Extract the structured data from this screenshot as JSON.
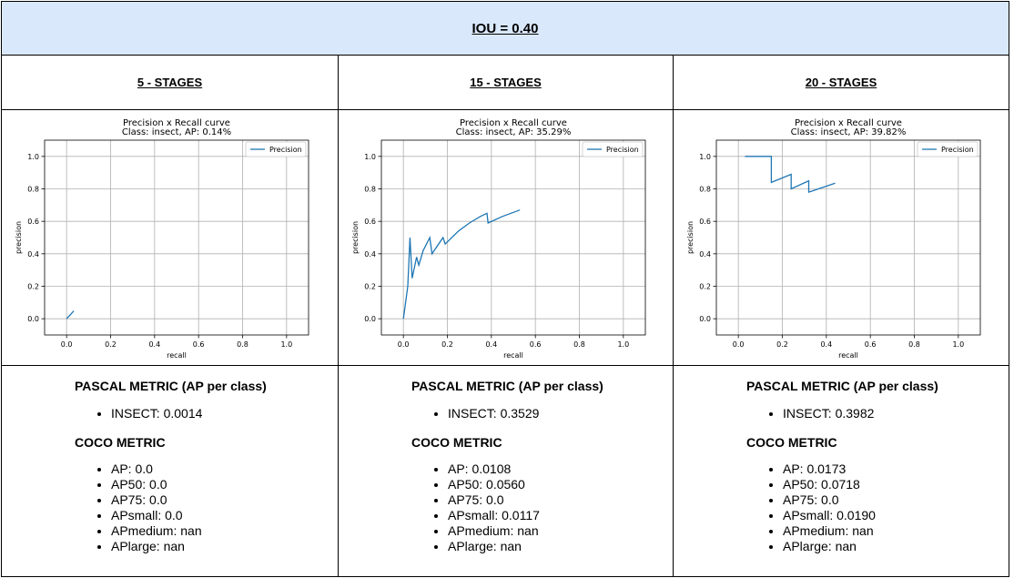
{
  "header": {
    "title": "IOU = 0.40"
  },
  "panels": [
    {
      "stage_label": "5 - STAGES",
      "pascal_title": "PASCAL METRIC (AP per class)",
      "pascal_items": [
        "INSECT: 0.0014"
      ],
      "coco_title": "COCO METRIC",
      "coco_items": [
        "AP: 0.0",
        "AP50: 0.0",
        "AP75: 0.0",
        "APsmall: 0.0",
        "APmedium: nan",
        "APlarge: nan"
      ]
    },
    {
      "stage_label": "15 - STAGES",
      "pascal_title": "PASCAL METRIC (AP per class)",
      "pascal_items": [
        "INSECT: 0.3529"
      ],
      "coco_title": "COCO METRIC",
      "coco_items": [
        "AP: 0.0108",
        "AP50: 0.0560",
        "AP75: 0.0",
        "APsmall: 0.0117",
        "APmedium: nan",
        "APlarge: nan"
      ]
    },
    {
      "stage_label": "20 - STAGES",
      "pascal_title": "PASCAL METRIC (AP per class)",
      "pascal_items": [
        "INSECT: 0.3982"
      ],
      "coco_title": "COCO METRIC",
      "coco_items": [
        "AP: 0.0173",
        "AP50: 0.0718",
        "AP75: 0.0",
        "APsmall: 0.0190",
        "APmedium: nan",
        "APlarge: nan"
      ]
    }
  ],
  "chart_data": [
    {
      "type": "line",
      "title": "Precision x Recall curve",
      "subtitle": "Class: insect, AP: 0.14%",
      "xlabel": "recall",
      "ylabel": "precision",
      "xlim": [
        -0.1,
        1.1
      ],
      "ylim": [
        -0.1,
        1.1
      ],
      "xticks": [
        "0.0",
        "0.2",
        "0.4",
        "0.6",
        "0.8",
        "1.0"
      ],
      "yticks": [
        "0.0",
        "0.2",
        "0.4",
        "0.6",
        "0.8",
        "1.0"
      ],
      "grid": true,
      "legend_position": "top-right",
      "series": [
        {
          "name": "Precision",
          "color": "#1f77b4",
          "x": [
            0.0,
            0.033
          ],
          "y": [
            0.0,
            0.048
          ]
        }
      ]
    },
    {
      "type": "line",
      "title": "Precision x Recall curve",
      "subtitle": "Class: insect, AP: 35.29%",
      "xlabel": "recall",
      "ylabel": "precision",
      "xlim": [
        -0.1,
        1.1
      ],
      "ylim": [
        -0.1,
        1.1
      ],
      "xticks": [
        "0.0",
        "0.2",
        "0.4",
        "0.6",
        "0.8",
        "1.0"
      ],
      "yticks": [
        "0.0",
        "0.2",
        "0.4",
        "0.6",
        "0.8",
        "1.0"
      ],
      "grid": true,
      "legend_position": "top-right",
      "series": [
        {
          "name": "Precision",
          "color": "#1f77b4",
          "x": [
            0.0,
            0.02,
            0.03,
            0.04,
            0.06,
            0.07,
            0.09,
            0.12,
            0.13,
            0.18,
            0.19,
            0.25,
            0.3,
            0.35,
            0.38,
            0.385,
            0.45,
            0.53
          ],
          "y": [
            0.0,
            0.2,
            0.5,
            0.25,
            0.38,
            0.33,
            0.42,
            0.5,
            0.4,
            0.5,
            0.46,
            0.54,
            0.59,
            0.63,
            0.65,
            0.59,
            0.63,
            0.67
          ]
        }
      ]
    },
    {
      "type": "line",
      "title": "Precision x Recall curve",
      "subtitle": "Class: insect, AP: 39.82%",
      "xlabel": "recall",
      "ylabel": "precision",
      "xlim": [
        -0.1,
        1.1
      ],
      "ylim": [
        -0.1,
        1.1
      ],
      "xticks": [
        "0.0",
        "0.2",
        "0.4",
        "0.6",
        "0.8",
        "1.0"
      ],
      "yticks": [
        "0.0",
        "0.2",
        "0.4",
        "0.6",
        "0.8",
        "1.0"
      ],
      "grid": true,
      "legend_position": "top-right",
      "series": [
        {
          "name": "Precision",
          "color": "#1f77b4",
          "x": [
            0.03,
            0.15,
            0.15,
            0.24,
            0.24,
            0.32,
            0.32,
            0.44
          ],
          "y": [
            1.0,
            1.0,
            0.84,
            0.89,
            0.8,
            0.85,
            0.78,
            0.835
          ]
        }
      ]
    }
  ]
}
